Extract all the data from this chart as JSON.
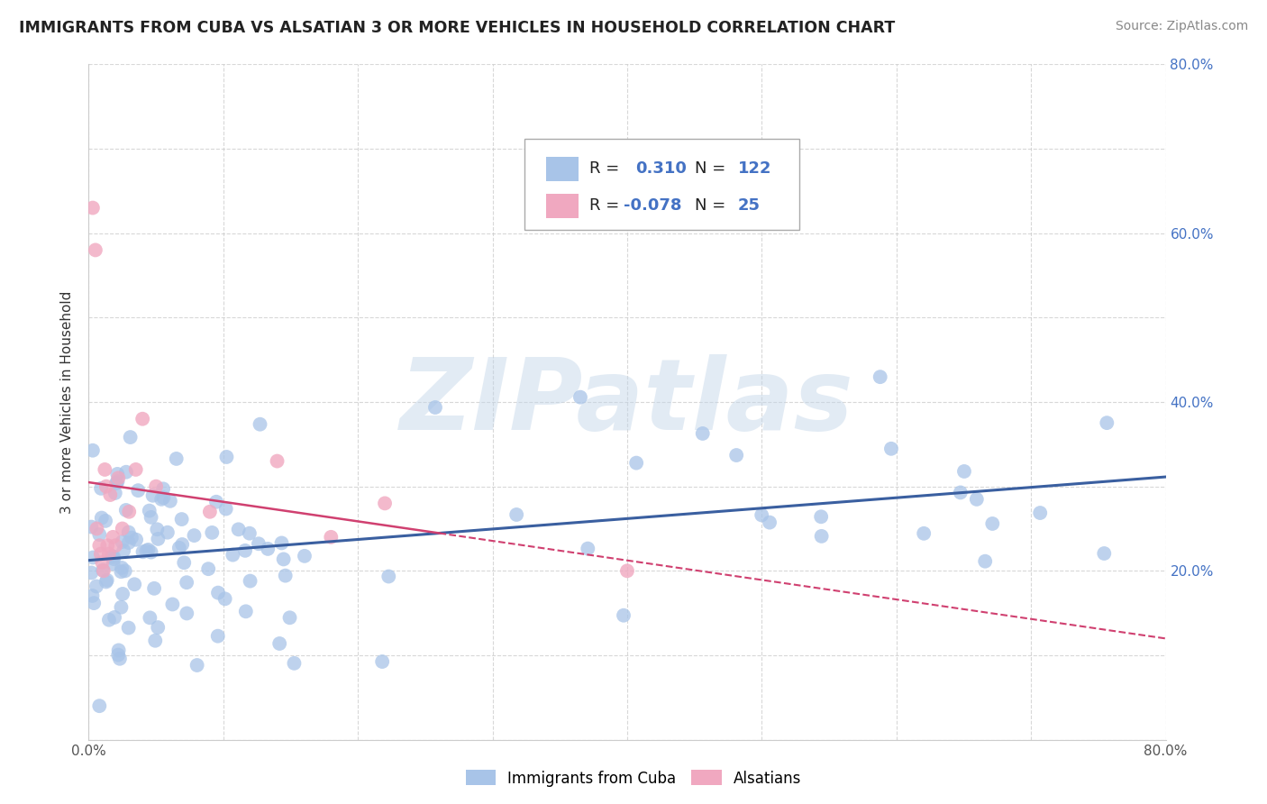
{
  "title": "IMMIGRANTS FROM CUBA VS ALSATIAN 3 OR MORE VEHICLES IN HOUSEHOLD CORRELATION CHART",
  "source": "Source: ZipAtlas.com",
  "ylabel": "3 or more Vehicles in Household",
  "xlim": [
    0.0,
    0.8
  ],
  "ylim": [
    0.0,
    0.8
  ],
  "legend1_label": "Immigrants from Cuba",
  "legend2_label": "Alsatians",
  "R1": 0.31,
  "N1": 122,
  "R2": -0.078,
  "N2": 25,
  "color_cuba": "#a8c4e8",
  "color_alsatian": "#f0a8c0",
  "color_line_cuba": "#3a5fa0",
  "color_line_alsatian": "#d04070",
  "watermark": "ZIPatlas",
  "watermark_color": "#c0d4e8",
  "background_color": "#ffffff",
  "grid_color": "#c8c8c8"
}
